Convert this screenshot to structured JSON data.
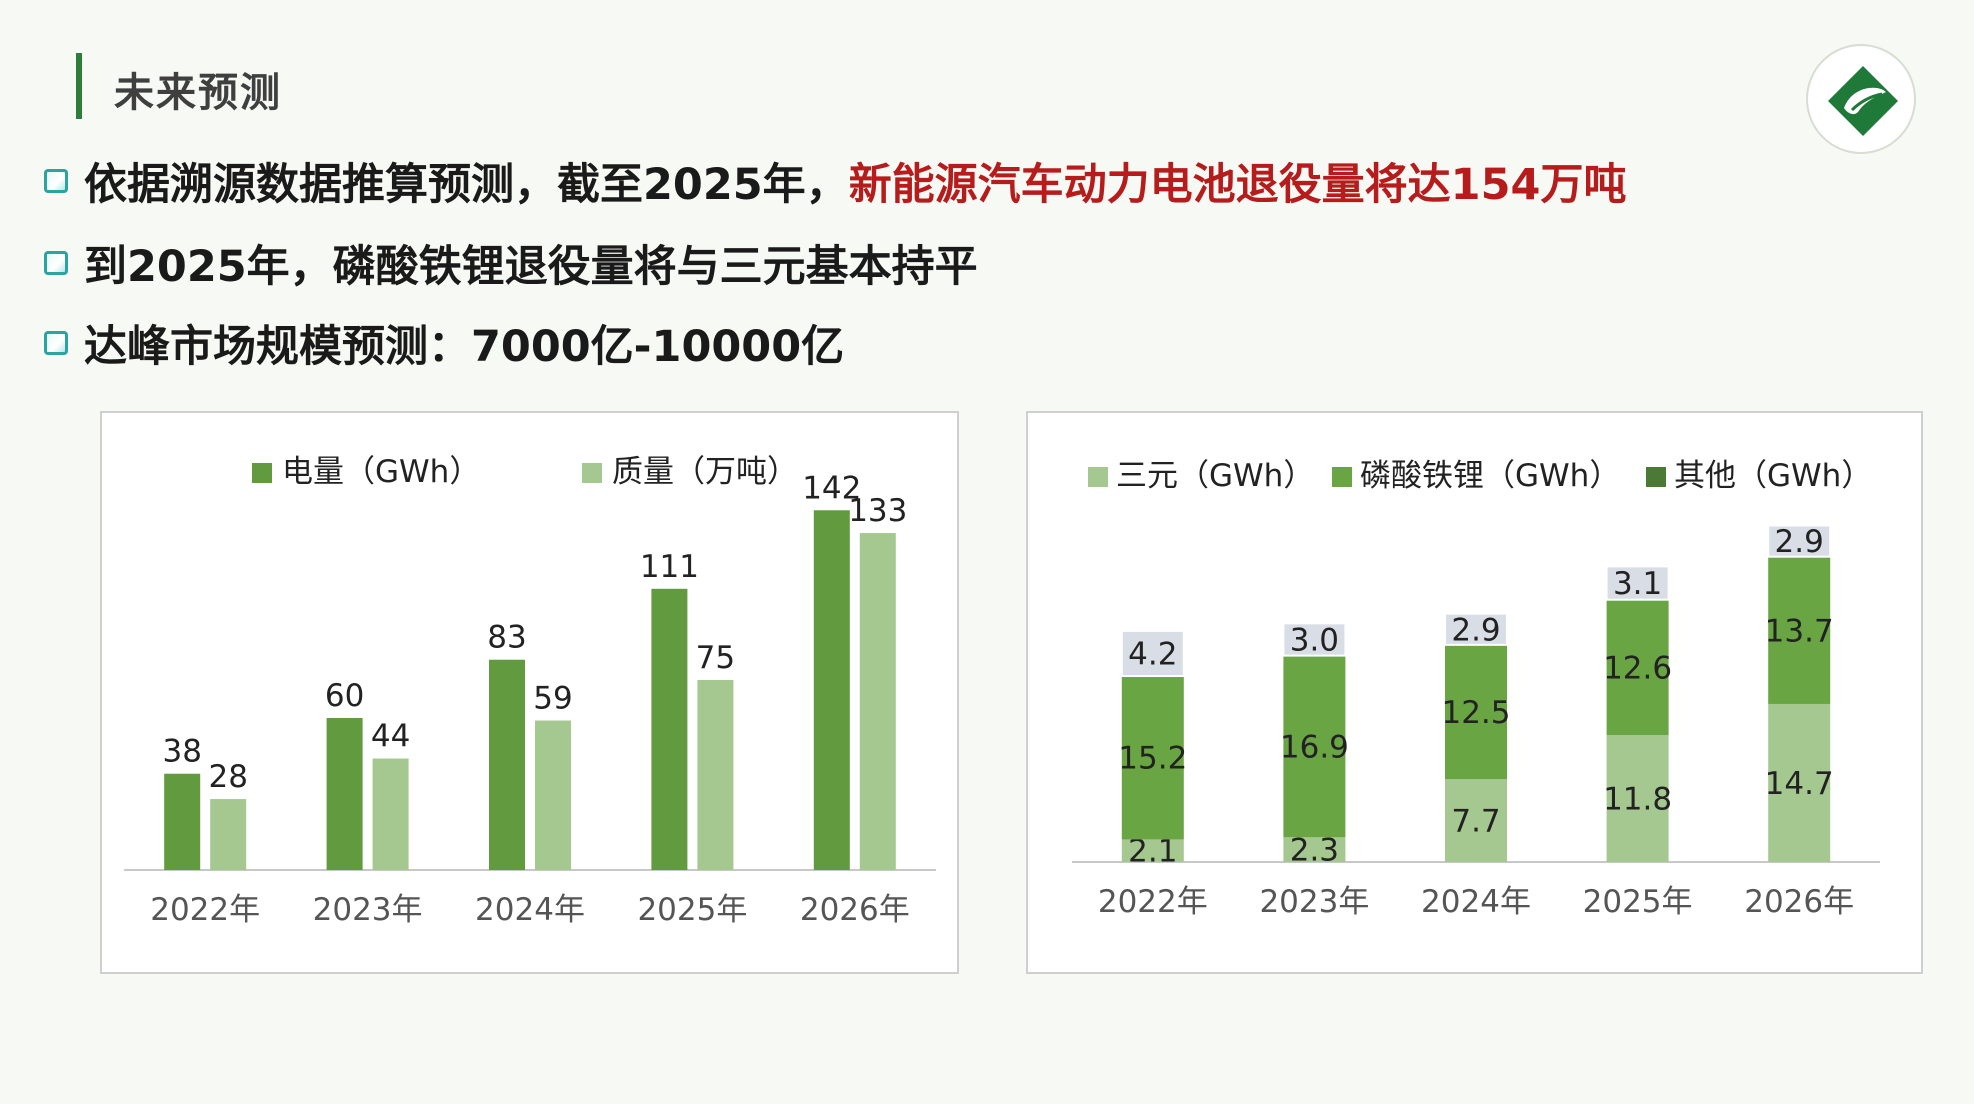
{
  "header": {
    "title": "未来预测"
  },
  "bullets": [
    {
      "text": "依据溯源数据推算预测，截至2025年，",
      "highlight": "新能源汽车动力电池退役量将达154万吨"
    },
    {
      "text": "到2025年，磷酸铁锂退役量将与三元基本持平",
      "highlight": ""
    },
    {
      "text": "达峰市场规模预测：7000亿-10000亿",
      "highlight": ""
    }
  ],
  "colors": {
    "accent": "#2e7d3a",
    "highlight": "#b71c1c",
    "dark_green": "#629a3f",
    "light_green": "#a5c790",
    "mid_green": "#6aa543",
    "top_segment": "#d9dde6"
  },
  "chart_data": [
    {
      "type": "bar",
      "categories": [
        "2022年",
        "2023年",
        "2024年",
        "2025年",
        "2026年"
      ],
      "series": [
        {
          "name": "电量（GWh）",
          "values": [
            38,
            60,
            83,
            111,
            142
          ],
          "color": "#629a3f"
        },
        {
          "name": "质量（万吨）",
          "values": [
            28,
            44,
            59,
            75,
            133
          ],
          "color": "#a5c790"
        }
      ],
      "ylim": [
        0,
        150
      ],
      "legend": "top",
      "grid": false
    },
    {
      "type": "bar",
      "stacked": true,
      "categories": [
        "2022年",
        "2023年",
        "2024年",
        "2025年",
        "2026年"
      ],
      "series": [
        {
          "name": "三元（GWh）",
          "values": [
            2.1,
            2.3,
            7.7,
            11.8,
            14.7
          ],
          "color": "#a5c790"
        },
        {
          "name": "磷酸铁锂（GWh）",
          "values": [
            15.2,
            16.9,
            12.5,
            12.6,
            13.7
          ],
          "color": "#6aa543"
        },
        {
          "name": "其他（GWh）",
          "values": [
            4.2,
            3.0,
            2.9,
            3.1,
            2.9
          ],
          "color": "#d9dde6",
          "legend_color": "#4a7a35"
        }
      ],
      "ylim": [
        0,
        32
      ],
      "legend": "top",
      "grid": false
    }
  ]
}
